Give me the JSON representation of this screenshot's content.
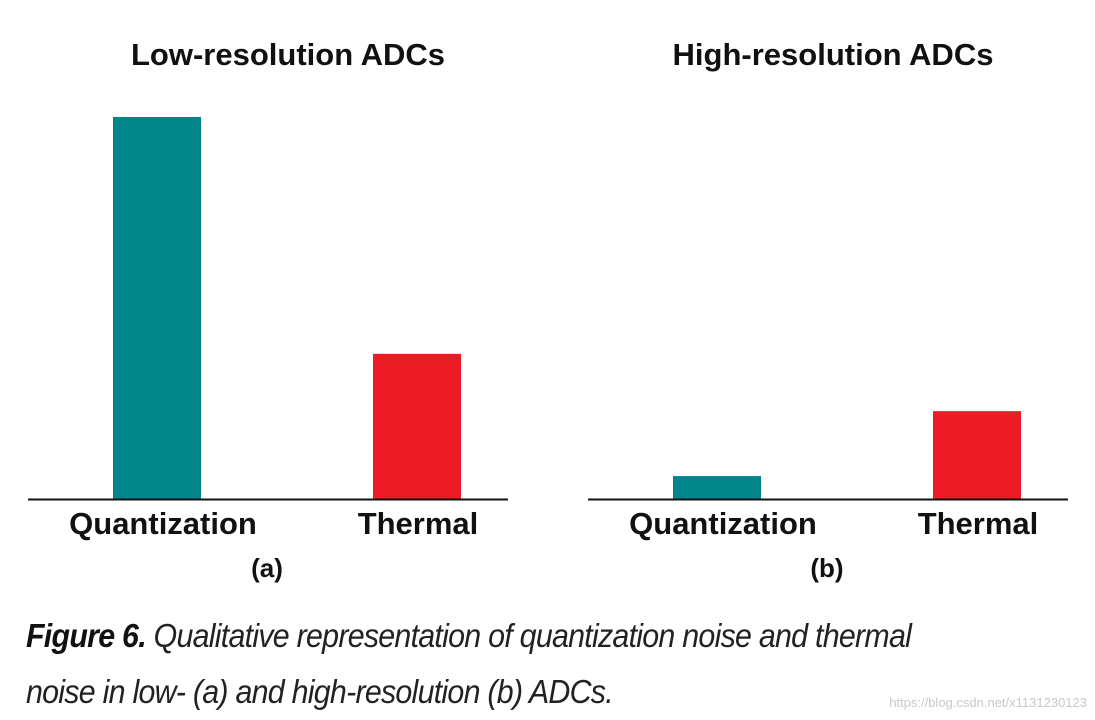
{
  "chart_data": [
    {
      "type": "bar",
      "title": "Low-resolution ADCs",
      "panel_label": "(a)",
      "categories": [
        "Quantization",
        "Thermal"
      ],
      "values": [
        1.0,
        0.38
      ],
      "colors": [
        "#00858a",
        "#ed1c24"
      ],
      "ylim": [
        0,
        1.0
      ]
    },
    {
      "type": "bar",
      "title": "High-resolution ADCs",
      "panel_label": "(b)",
      "categories": [
        "Quantization",
        "Thermal"
      ],
      "values": [
        0.06,
        0.23
      ],
      "colors": [
        "#00858a",
        "#ed1c24"
      ],
      "ylim": [
        0,
        1.0
      ]
    }
  ],
  "caption": {
    "label": "Figure 6.",
    "text": "Qualitative representation of quantization noise and thermal noise in low- (a) and high-resolution (b) ADCs."
  },
  "watermark": "https://blog.csdn.net/x1131230123"
}
